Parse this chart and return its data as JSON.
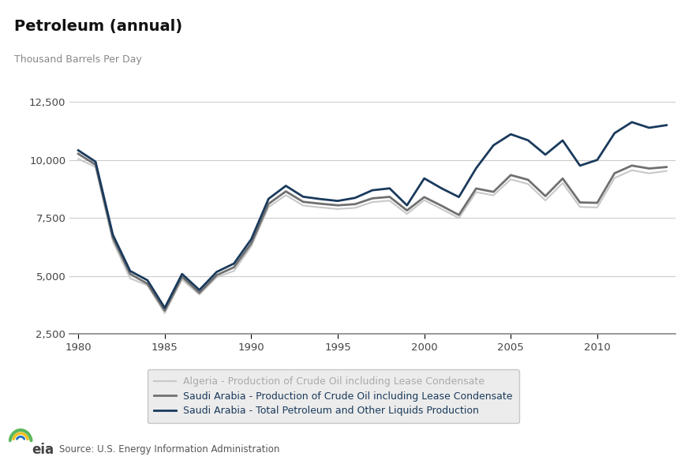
{
  "title": "Petroleum (annual)",
  "ylabel": "Thousand Barrels Per Day",
  "source": "Source: U.S. Energy Information Administration",
  "background_color": "#ffffff",
  "plot_bg_color": "#ffffff",
  "grid_color": "#cccccc",
  "ylim": [
    2500,
    13500
  ],
  "yticks": [
    2500,
    5000,
    7500,
    10000,
    12500
  ],
  "xlim": [
    1979.5,
    2014.5
  ],
  "xticks": [
    1980,
    1985,
    1990,
    1995,
    2000,
    2005,
    2010
  ],
  "algeria_crude": {
    "years": [
      1980,
      1981,
      1982,
      1983,
      1984,
      1985,
      1986,
      1987,
      1988,
      1989,
      1990,
      1991,
      1992,
      1993,
      1994,
      1995,
      1996,
      1997,
      1998,
      1999,
      2000,
      2001,
      2002,
      2003,
      2004,
      2005,
      2006,
      2007,
      2008,
      2009,
      2010,
      2011,
      2012,
      2013,
      2014
    ],
    "values": [
      10050,
      9700,
      6500,
      4900,
      4600,
      3400,
      4850,
      4200,
      4950,
      5220,
      6280,
      7970,
      8490,
      8040,
      7960,
      7890,
      7940,
      8190,
      8250,
      7680,
      8270,
      7890,
      7500,
      8620,
      8480,
      9170,
      8970,
      8260,
      9010,
      7980,
      7960,
      9230,
      9560,
      9430,
      9530
    ],
    "color": "#c8c8c8",
    "linewidth": 1.5,
    "label": "Algeria - Production of Crude Oil including Lease Condensate"
  },
  "saudi_crude": {
    "years": [
      1980,
      1981,
      1982,
      1983,
      1984,
      1985,
      1986,
      1987,
      1988,
      1989,
      1990,
      1991,
      1992,
      1993,
      1994,
      1995,
      1996,
      1997,
      1998,
      1999,
      2000,
      2001,
      2002,
      2003,
      2004,
      2005,
      2006,
      2007,
      2008,
      2009,
      2010,
      2011,
      2012,
      2013,
      2014
    ],
    "values": [
      10270,
      9800,
      6650,
      5090,
      4670,
      3510,
      4970,
      4280,
      5040,
      5380,
      6410,
      8115,
      8650,
      8200,
      8120,
      8050,
      8100,
      8350,
      8415,
      7830,
      8404,
      8031,
      7634,
      8775,
      8630,
      9353,
      9152,
      8446,
      9206,
      8174,
      8157,
      9433,
      9763,
      9637,
      9700
    ],
    "color": "#707070",
    "linewidth": 2.0,
    "label": "Saudi Arabia - Production of Crude Oil including Lease Condensate"
  },
  "saudi_total": {
    "years": [
      1980,
      1981,
      1982,
      1983,
      1984,
      1985,
      1986,
      1987,
      1988,
      1989,
      1990,
      1991,
      1992,
      1993,
      1994,
      1995,
      1996,
      1997,
      1998,
      1999,
      2000,
      2001,
      2002,
      2003,
      2004,
      2005,
      2006,
      2007,
      2008,
      2009,
      2010,
      2011,
      2012,
      2013,
      2014
    ],
    "values": [
      10420,
      9930,
      6780,
      5220,
      4820,
      3630,
      5090,
      4400,
      5180,
      5540,
      6590,
      8330,
      8890,
      8420,
      8320,
      8240,
      8370,
      8700,
      8780,
      8050,
      9211,
      8782,
      8408,
      9651,
      10638,
      11114,
      10853,
      10234,
      10846,
      9760,
      10007,
      11161,
      11635,
      11393,
      11505
    ],
    "color": "#1a3a5c",
    "linewidth": 2.0,
    "label": "Saudi Arabia - Total Petroleum and Other Liquids Production"
  },
  "legend_facecolor": "#e8e8e8",
  "legend_edgecolor": "#bbbbbb",
  "algeria_text_color": "#aaaaaa",
  "saudi_text_color": "#1a3a5c"
}
